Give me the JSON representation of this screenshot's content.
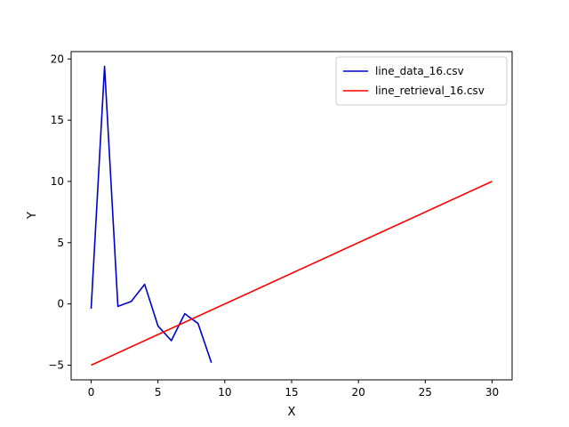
{
  "chart_data": {
    "type": "line",
    "title": "",
    "xlabel": "X",
    "ylabel": "Y",
    "xlim": [
      -1.5,
      31.5
    ],
    "ylim": [
      -6.2,
      20.6
    ],
    "xticks": [
      0,
      5,
      10,
      15,
      20,
      25,
      30
    ],
    "yticks": [
      -5,
      0,
      5,
      10,
      15,
      20
    ],
    "grid": false,
    "legend": "top-right",
    "series": [
      {
        "name": "line_data_16.csv",
        "color": "#0000cc",
        "x": [
          0,
          1,
          2,
          3,
          4,
          5,
          6,
          7,
          8,
          9
        ],
        "y": [
          -0.4,
          19.4,
          -0.2,
          0.2,
          1.6,
          -1.8,
          -3.0,
          -0.8,
          -1.6,
          -4.8
        ]
      },
      {
        "name": "line_retrieval_16.csv",
        "color": "#ff0000",
        "x": [
          0,
          30
        ],
        "y": [
          -5,
          10
        ]
      }
    ]
  }
}
